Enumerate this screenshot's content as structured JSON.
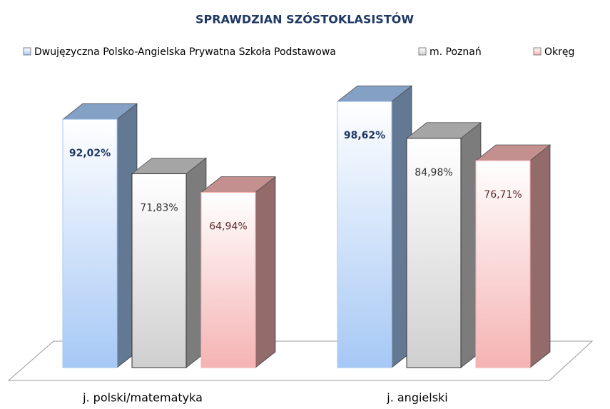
{
  "chart_data": {
    "type": "bar",
    "title": "SPRAWDZIAN SZÓSTOKLASISTÓW",
    "categories": [
      "j. polski/matematyka",
      "j. angielski"
    ],
    "series": [
      {
        "name": "Dwujęzyczna Polsko-Angielska Prywatna Szkoła Podstawowa",
        "color": "#a6c8f5",
        "values": [
          92.02,
          98.62
        ],
        "value_labels": [
          "92,02%",
          "98,62%"
        ]
      },
      {
        "name": "m. Poznań",
        "color": "#cfcfcf",
        "values": [
          71.83,
          84.98
        ],
        "value_labels": [
          "71,83%",
          "84,98%"
        ]
      },
      {
        "name": "Okręg",
        "color": "#f5b3b3",
        "values": [
          64.94,
          76.71
        ],
        "value_labels": [
          "64,94%",
          "76,71%"
        ]
      }
    ],
    "legend": "top"
  }
}
